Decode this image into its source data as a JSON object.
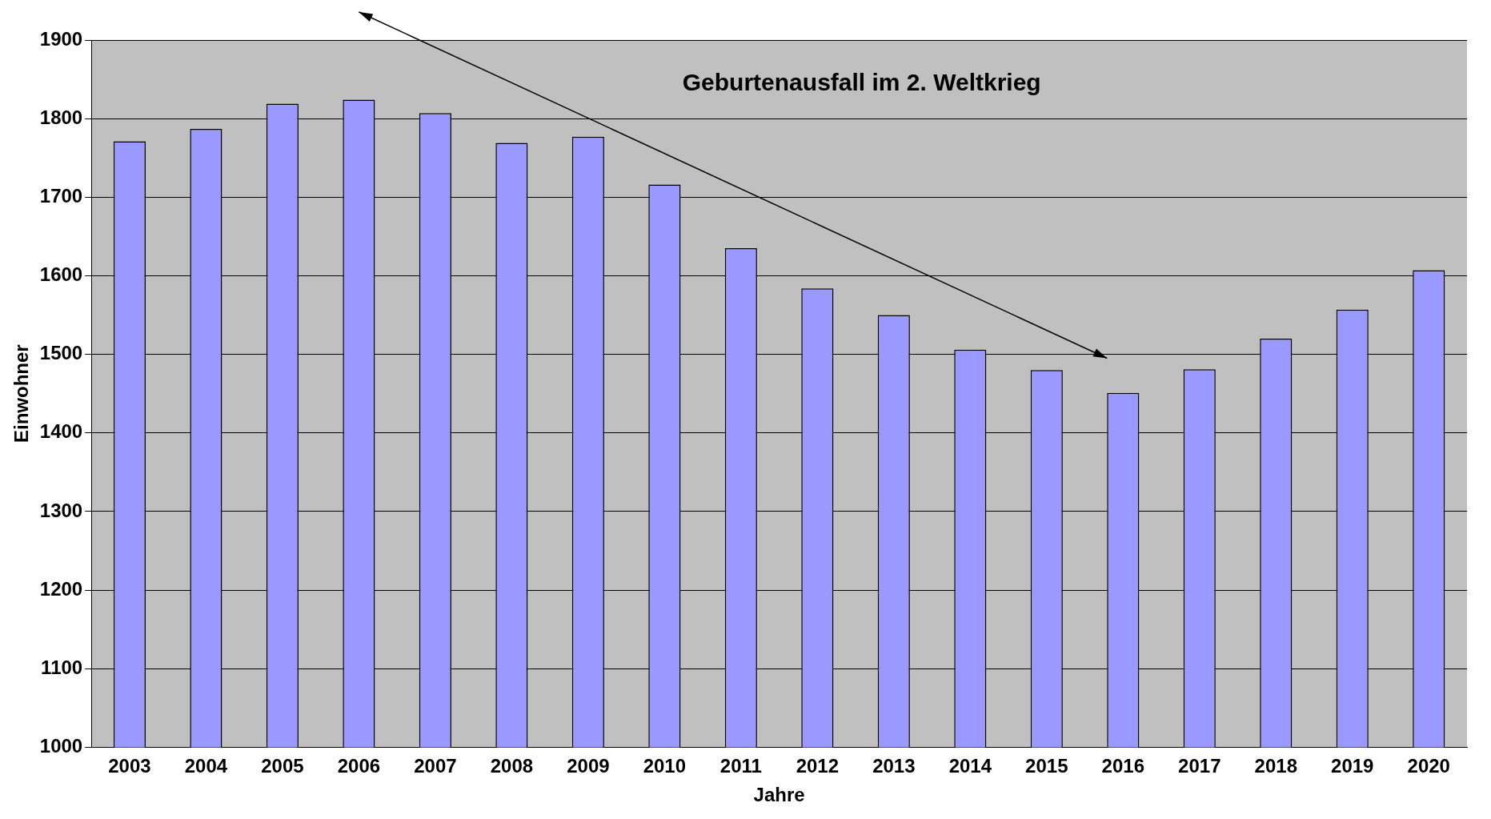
{
  "chart_data": {
    "type": "bar",
    "xlabel": "Jahre",
    "ylabel": "Einwohner",
    "annotations": [
      "Geburtenausfall im 2. Weltkrieg"
    ],
    "categories": [
      "2003",
      "2004",
      "2005",
      "2006",
      "2007",
      "2008",
      "2009",
      "2010",
      "2011",
      "2012",
      "2013",
      "2014",
      "2015",
      "2016",
      "2017",
      "2018",
      "2019",
      "2020"
    ],
    "values": [
      1771,
      1787,
      1819,
      1824,
      1807,
      1769,
      1777,
      1716,
      1635,
      1584,
      1550,
      1506,
      1480,
      1451,
      1481,
      1520,
      1557,
      1607
    ],
    "color": "#9999ff",
    "ylim": [
      1000,
      1900
    ],
    "yticks": [
      1000,
      1100,
      1200,
      1300,
      1400,
      1500,
      1600,
      1700,
      1800,
      1900
    ],
    "grid": "y",
    "legend": false
  }
}
